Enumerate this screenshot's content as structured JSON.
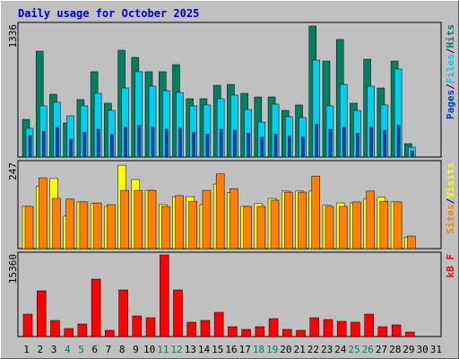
{
  "chart_data": [
    {
      "type": "bar",
      "title": "Daily usage for October 2025",
      "categories": [
        "1",
        "2",
        "3",
        "4",
        "5",
        "6",
        "7",
        "8",
        "9",
        "10",
        "11",
        "12",
        "13",
        "14",
        "15",
        "16",
        "17",
        "18",
        "19",
        "20",
        "21",
        "22",
        "23",
        "24",
        "25",
        "26",
        "27",
        "28",
        "29",
        "30",
        "31"
      ],
      "category_colors": [
        "#000000",
        "#000000",
        "#000000",
        "#008060",
        "#008060",
        "#000000",
        "#000000",
        "#000000",
        "#000000",
        "#000000",
        "#008060",
        "#008060",
        "#000000",
        "#000000",
        "#000000",
        "#000000",
        "#000000",
        "#008060",
        "#008060",
        "#000000",
        "#000000",
        "#000000",
        "#000000",
        "#000000",
        "#008060",
        "#008060",
        "#000000",
        "#000000",
        "#000000",
        "#000000",
        "#000000"
      ],
      "legend_separator": "/",
      "ylim": [
        0,
        1336
      ],
      "yticks": [
        1336
      ],
      "series": [
        {
          "name": "Pages",
          "color": "#0040c0",
          "values": [
            220,
            260,
            300,
            180,
            250,
            280,
            230,
            300,
            320,
            300,
            280,
            290,
            250,
            230,
            280,
            270,
            240,
            200,
            230,
            210,
            200,
            330,
            280,
            300,
            240,
            300,
            270,
            320,
            60,
            0,
            0
          ]
        },
        {
          "name": "Files",
          "color": "#00d0f0",
          "values": [
            289,
            515,
            551,
            415,
            515,
            641,
            469,
            695,
            858,
            713,
            668,
            650,
            515,
            524,
            587,
            623,
            478,
            352,
            533,
            406,
            397,
            975,
            515,
            731,
            469,
            713,
            524,
            885,
            99,
            0,
            0
          ]
        },
        {
          "name": "Hits",
          "color": "#008060",
          "values": [
            379,
            1065,
            632,
            343,
            578,
            858,
            542,
            1074,
            1002,
            858,
            858,
            930,
            587,
            587,
            722,
            731,
            641,
            605,
            605,
            469,
            524,
            1318,
            966,
            1183,
            542,
            984,
            695,
            966,
            135,
            0,
            0
          ]
        }
      ]
    },
    {
      "type": "bar",
      "ylim": [
        0,
        247
      ],
      "yticks": [
        247
      ],
      "series": [
        {
          "name": "Sites",
          "color": "#ff8000",
          "values": [
            121,
            203,
            144,
            142,
            134,
            131,
            126,
            167,
            167,
            167,
            121,
            152,
            136,
            167,
            214,
            172,
            121,
            121,
            139,
            162,
            162,
            208,
            121,
            121,
            134,
            165,
            136,
            134,
            36,
            0,
            0
          ]
        },
        {
          "name": "Visits",
          "color": "#ffff00",
          "values": [
            121,
            178,
            201,
            93,
            134,
            129,
            121,
            239,
            198,
            167,
            126,
            149,
            149,
            126,
            185,
            160,
            121,
            129,
            144,
            165,
            165,
            165,
            124,
            131,
            131,
            142,
            147,
            134,
            33,
            0,
            0
          ]
        }
      ]
    },
    {
      "type": "bar",
      "ylim": [
        0,
        15360
      ],
      "yticks": [
        15360
      ],
      "series": [
        {
          "name": "kB F",
          "color": "#ff0000",
          "values": [
            4174,
            8515,
            3005,
            1503,
            2337,
            10685,
            1169,
            8682,
            3840,
            3506,
            15193,
            8682,
            2671,
            3005,
            4508,
            1837,
            1336,
            1837,
            3339,
            1336,
            1169,
            3506,
            3172,
            2838,
            2671,
            4174,
            1837,
            2170,
            835,
            0,
            0
          ]
        }
      ]
    }
  ]
}
